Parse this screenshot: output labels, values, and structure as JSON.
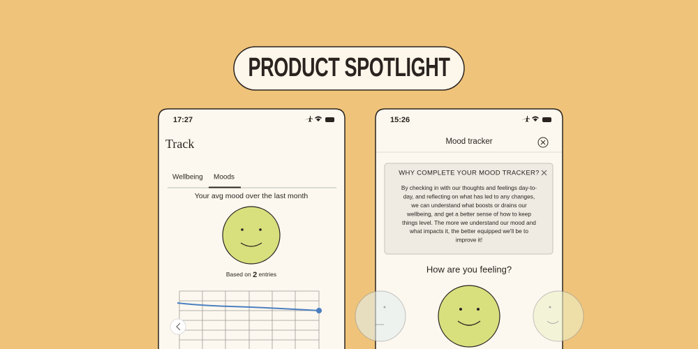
{
  "banner": {
    "title": "PRODUCT SPOTLIGHT"
  },
  "left_screen": {
    "time": "17:27",
    "title": "Track",
    "tabs": [
      "Wellbeing",
      "Moods"
    ],
    "subtitle": "Your avg mood over the last month",
    "based_on": "Based on",
    "entries_count": "2",
    "entries": "entries"
  },
  "right_screen": {
    "time": "15:26",
    "title": "Mood tracker",
    "info_title": "WHY COMPLETE YOUR MOOD TRACKER?",
    "info_lines": [
      "By checking in with our thoughts and feelings day-to-",
      "day, and reflecting on what has led to any changes,",
      "we can understand what boosts or drains our",
      "wellbeing, and get a better sense of how to keep",
      "things level. The more we understand our mood and",
      "what impacts it, the better equipped we'll be to",
      "improve it!"
    ],
    "question": "How are you feeling?"
  }
}
